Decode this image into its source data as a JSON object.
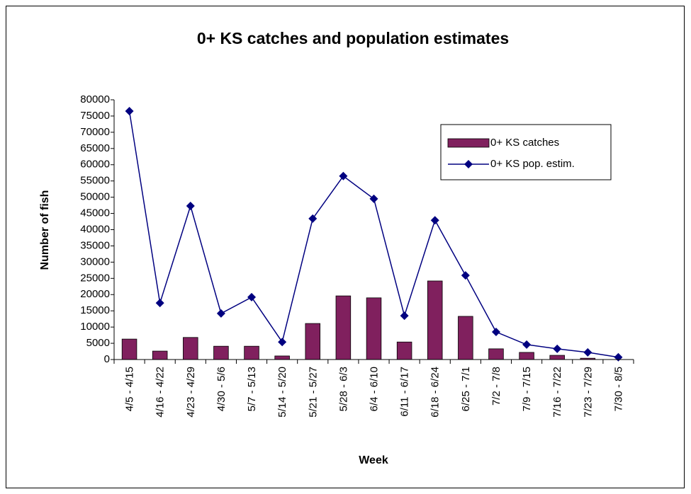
{
  "chart_data": {
    "type": "bar_line",
    "title": "0+ KS catches and population estimates",
    "xlabel": "Week",
    "ylabel": "Number of fish",
    "categories": [
      "4/5 - 4/15",
      "4/16 - 4/22",
      "4/23 - 4/29",
      "4/30 - 5/6",
      "5/7 - 5/13",
      "5/14 - 5/20",
      "5/21 - 5/27",
      "5/28 - 6/3",
      "6/4 - 6/10",
      "6/11 - 6/17",
      "6/18 - 6/24",
      "6/25 - 7/1",
      "7/2 - 7/8",
      "7/9 - 7/15",
      "7/16 - 7/22",
      "7/23 - 7/29",
      "7/30 - 8/5"
    ],
    "series": [
      {
        "name": "0+ KS catches",
        "type": "bar",
        "color": "#80205e",
        "values": [
          6300,
          2600,
          6800,
          4100,
          4100,
          1100,
          11100,
          19600,
          19000,
          5400,
          24200,
          13300,
          3300,
          2200,
          1300,
          400,
          0
        ]
      },
      {
        "name": "0+ KS pop. estim.",
        "type": "line",
        "color": "#000080",
        "values": [
          76500,
          17400,
          47300,
          14200,
          19200,
          5400,
          43400,
          56500,
          49500,
          13500,
          42900,
          25900,
          8500,
          4600,
          3300,
          2200,
          700
        ]
      }
    ],
    "ylim": [
      0,
      80000
    ],
    "yticks": [
      0,
      5000,
      10000,
      15000,
      20000,
      25000,
      30000,
      35000,
      40000,
      45000,
      50000,
      55000,
      60000,
      65000,
      70000,
      75000,
      80000
    ],
    "legend": "upper right"
  }
}
